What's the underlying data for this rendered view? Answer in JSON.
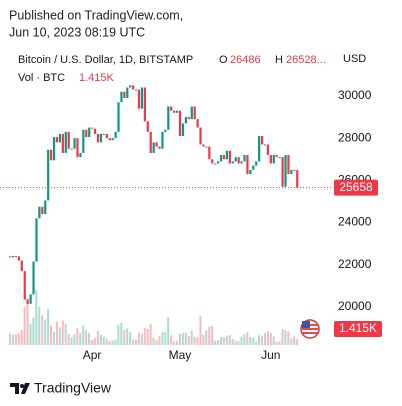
{
  "header": {
    "line1": "Published on TradingView.com,",
    "line2": "Jun 10, 2023 08:19 UTC"
  },
  "footer": {
    "brand": "TradingView"
  },
  "chart_data": {
    "type": "candlestick",
    "title": "Bitcoin / U.S. Dollar, 1D, BITSTAMP",
    "open_key": "O",
    "high_key": "H",
    "high_label": "26528...",
    "currency": "USD",
    "volume_title": "Vol · BTC",
    "volume_last_label": "1.415K",
    "up_color": "#089981",
    "down_color": "#f23645",
    "ylim": [
      18200,
      32650
    ],
    "yticks": [
      20000,
      22000,
      24000,
      26000,
      28000,
      30000
    ],
    "categories": [
      null,
      null,
      null,
      null,
      null,
      null,
      null,
      null,
      null,
      null,
      null,
      null,
      null,
      null,
      null,
      null,
      null,
      null,
      null,
      null,
      null,
      null,
      null,
      null,
      null,
      null,
      null,
      null,
      "Apr",
      null,
      null,
      null,
      null,
      null,
      null,
      null,
      null,
      null,
      null,
      null,
      null,
      null,
      null,
      null,
      null,
      null,
      null,
      null,
      null,
      null,
      null,
      null,
      null,
      null,
      null,
      null,
      null,
      null,
      "May",
      null,
      null,
      null,
      null,
      null,
      null,
      null,
      null,
      null,
      null,
      null,
      null,
      null,
      null,
      null,
      null,
      null,
      null,
      null,
      null,
      null,
      null,
      null,
      null,
      null,
      null,
      null,
      null,
      null,
      null,
      "Jun",
      null,
      null,
      null,
      null,
      null,
      null,
      null,
      null,
      null
    ],
    "open": [
      22400,
      22350,
      22420,
      22400,
      22200,
      21700,
      20350,
      20150,
      20600,
      22150,
      24200,
      24750,
      24400,
      25050,
      27450,
      26950,
      28050,
      27800,
      28200,
      27300,
      28300,
      27500,
      27500,
      28000,
      27100,
      27300,
      28400,
      28050,
      28500,
      28450,
      28200,
      27800,
      28200,
      28200,
      28000,
      27900,
      28000,
      28300,
      29700,
      30200,
      29900,
      30400,
      30500,
      30300,
      30300,
      29400,
      30400,
      28800,
      28300,
      27300,
      27800,
      27600,
      27500,
      28300,
      28400,
      29500,
      29300,
      29200,
      29300,
      28100,
      28700,
      29000,
      28900,
      29500,
      28900,
      28500,
      27700,
      27600,
      27600,
      27000,
      26800,
      26800,
      26900,
      27200,
      27000,
      27400,
      26800,
      26900,
      27100,
      26800,
      26900,
      27200,
      26300,
      26500,
      26700,
      26900,
      28100,
      27700,
      27700,
      27200,
      26800,
      27200,
      27100,
      27100,
      25700,
      27200,
      26300,
      26500,
      26486
    ],
    "close": [
      22350,
      22420,
      22400,
      22200,
      21700,
      20350,
      20150,
      20600,
      22150,
      24200,
      24750,
      24400,
      25050,
      27450,
      26950,
      28050,
      27800,
      28200,
      27300,
      28300,
      27500,
      27500,
      28000,
      27100,
      27300,
      28400,
      28050,
      28500,
      28450,
      28200,
      27800,
      28200,
      28200,
      28000,
      27900,
      28000,
      28300,
      29700,
      30200,
      29900,
      30400,
      30500,
      30300,
      30300,
      29400,
      30400,
      28800,
      28300,
      27300,
      27800,
      27600,
      27500,
      28300,
      28400,
      29500,
      29300,
      29200,
      29300,
      28100,
      28700,
      29000,
      28900,
      29500,
      28900,
      28500,
      27700,
      27600,
      27600,
      27000,
      26800,
      26800,
      26900,
      27200,
      27000,
      27400,
      26800,
      26900,
      27100,
      26800,
      26900,
      27200,
      26300,
      26500,
      26700,
      26900,
      28100,
      27700,
      27700,
      27200,
      26800,
      27200,
      27100,
      27100,
      25700,
      27200,
      26300,
      26500,
      26486,
      25658
    ],
    "volume": [
      2600,
      2400,
      2500,
      2800,
      3500,
      9000,
      11000,
      5000,
      6500,
      13000,
      9000,
      7000,
      6000,
      8500,
      4500,
      3000,
      5500,
      4200,
      5800,
      5000,
      2600,
      1800,
      2500,
      4000,
      2800,
      4600,
      3500,
      2900,
      1200,
      1600,
      3300,
      2400,
      1900,
      1400,
      900,
      1000,
      1200,
      4800,
      5200,
      3600,
      3900,
      3000,
      1300,
      1200,
      3000,
      2700,
      4000,
      3800,
      5000,
      1700,
      1100,
      2200,
      3000,
      3100,
      6500,
      2300,
      800,
      1000,
      2600,
      2800,
      2900,
      2200,
      3300,
      2000,
      1800,
      6900,
      2400,
      3500,
      4300,
      4500,
      1000,
      1100,
      1900,
      1800,
      2200,
      2300,
      1400,
      900,
      900,
      2000,
      2500,
      3000,
      1900,
      1700,
      800,
      2300,
      2100,
      2800,
      3300,
      2900,
      2000,
      800,
      800,
      3800,
      3500,
      3200,
      1500,
      2000,
      1415
    ]
  }
}
